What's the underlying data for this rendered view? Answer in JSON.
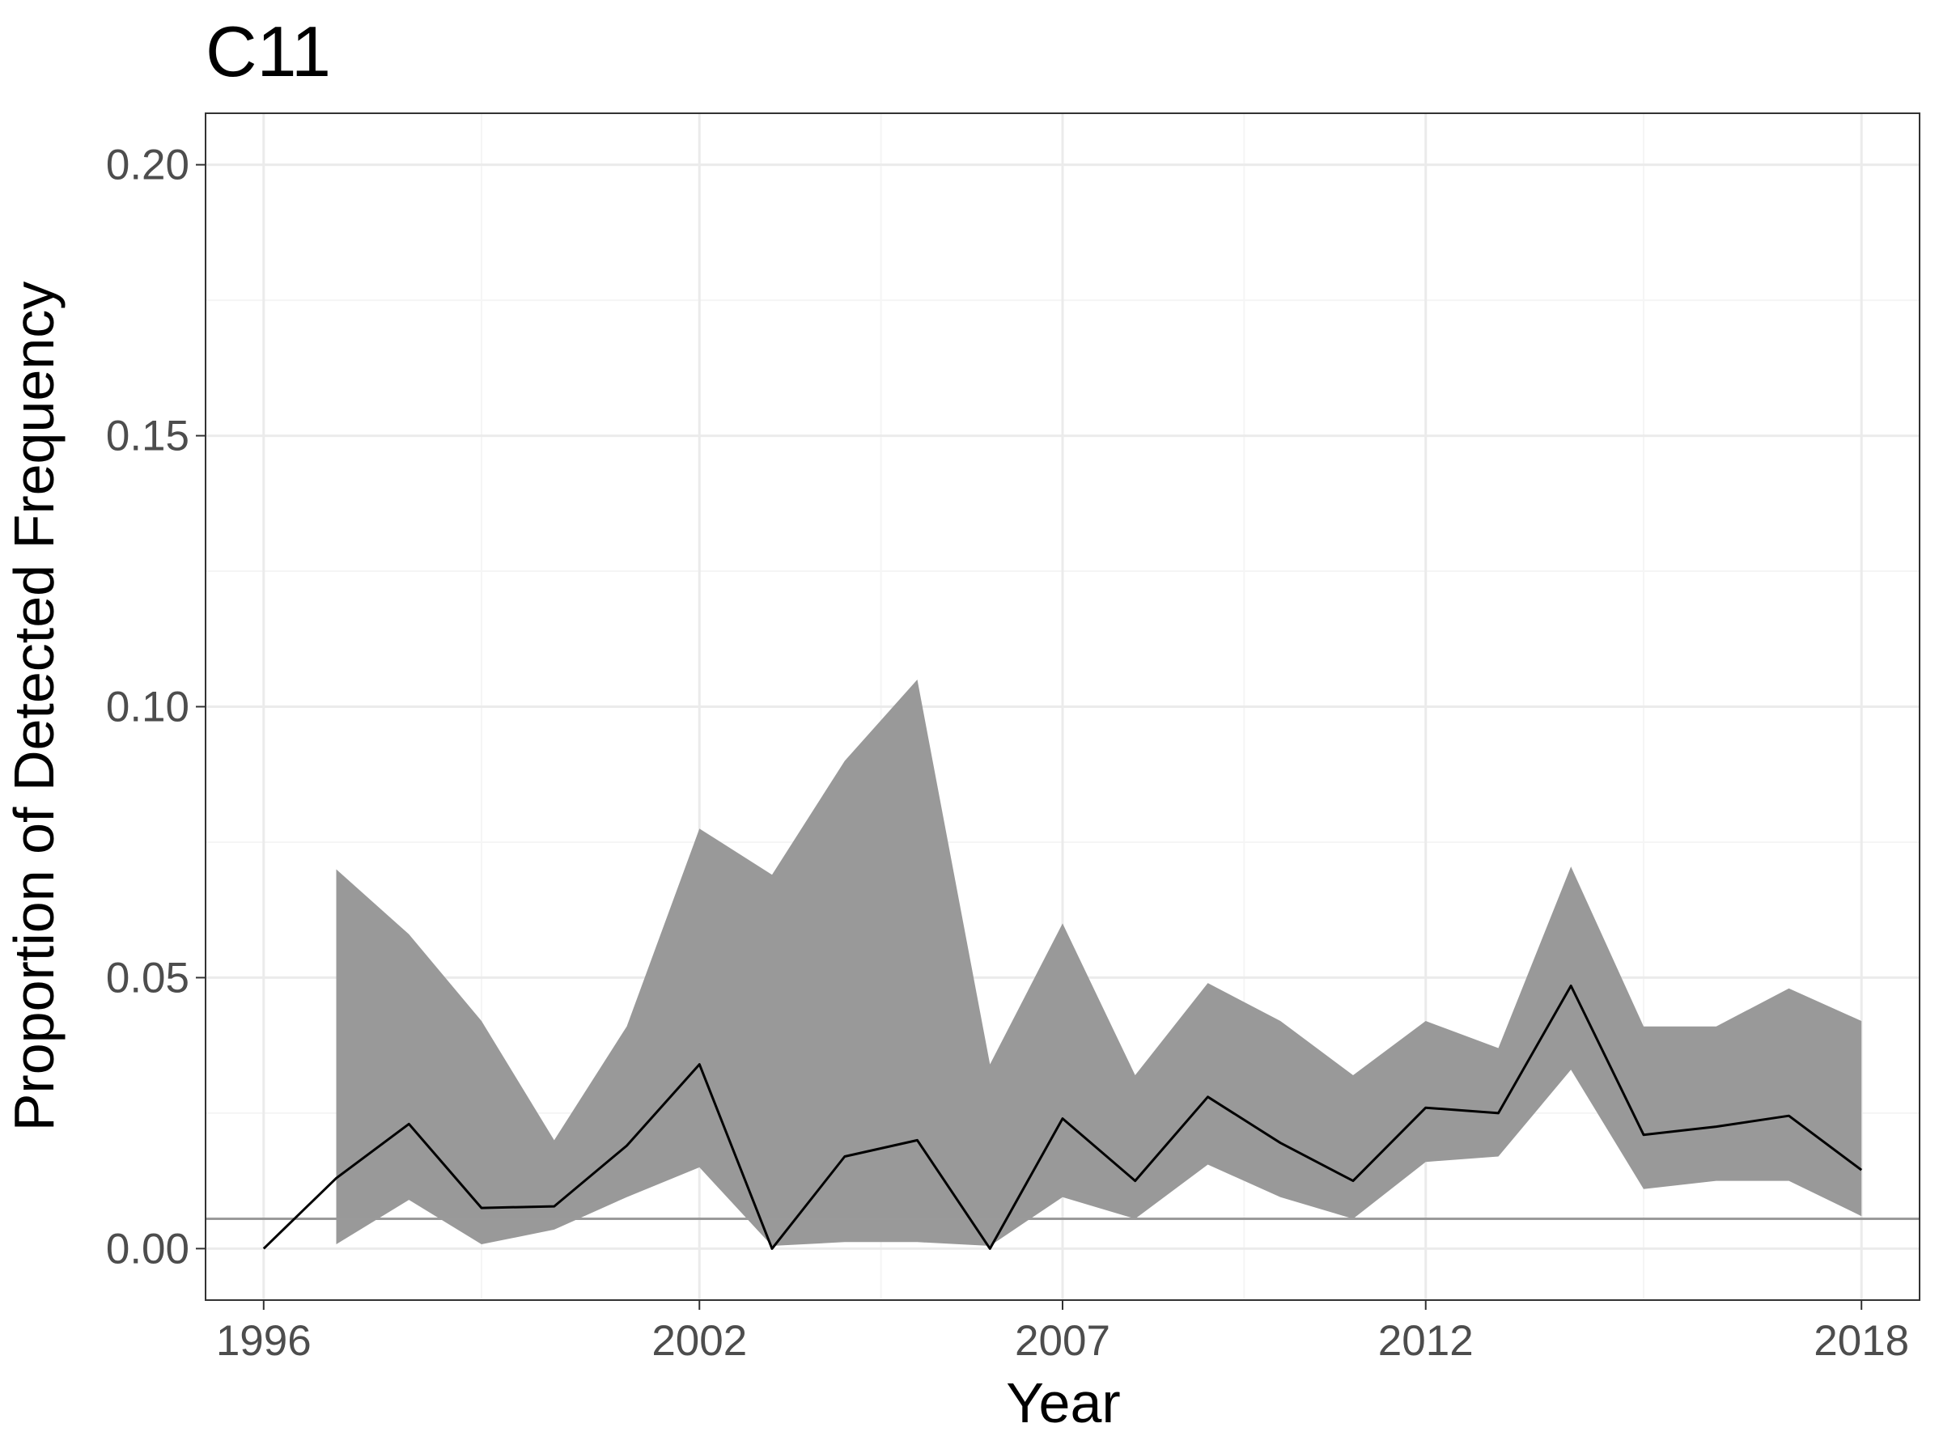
{
  "chart_data": {
    "type": "line",
    "title": "C11",
    "xlabel": "Year",
    "ylabel": "Proportion of Detected Frequency",
    "xlim": [
      1995.2,
      2018.8
    ],
    "ylim": [
      -0.0095,
      0.2095
    ],
    "x_ticks": [
      1996,
      2002,
      2007,
      2012,
      2018
    ],
    "x_tick_labels": [
      "1996",
      "2002",
      "2007",
      "2012",
      "2018"
    ],
    "x_minor_ticks": [
      1999,
      2004.5,
      2009.5,
      2015
    ],
    "y_ticks": [
      0.0,
      0.05,
      0.1,
      0.15,
      0.2
    ],
    "y_tick_labels": [
      "0.00",
      "0.05",
      "0.10",
      "0.15",
      "0.20"
    ],
    "y_minor_ticks": [
      0.025,
      0.075,
      0.125,
      0.175
    ],
    "grid": true,
    "reference_line": {
      "y": 0.0055
    },
    "series": [
      {
        "x": [
          1996,
          1997,
          1998,
          1999,
          2000,
          2001,
          2002,
          2003,
          2004,
          2005,
          2006,
          2007,
          2008,
          2009,
          2010,
          2011,
          2012,
          2013,
          2014,
          2015,
          2016,
          2017,
          2018
        ],
        "values": [
          0.0,
          0.013,
          0.023,
          0.0075,
          0.0078,
          0.019,
          0.034,
          0.0,
          0.017,
          0.02,
          0.0,
          0.024,
          0.0125,
          0.028,
          0.0195,
          0.0125,
          0.026,
          0.025,
          0.0485,
          0.021,
          0.0225,
          0.0245,
          0.0145
        ]
      }
    ],
    "ribbon": {
      "x": [
        1997,
        1998,
        1999,
        2000,
        2001,
        2002,
        2003,
        2004,
        2005,
        2006,
        2007,
        2008,
        2009,
        2010,
        2011,
        2012,
        2013,
        2014,
        2015,
        2016,
        2017,
        2018
      ],
      "upper": [
        0.07,
        0.058,
        0.042,
        0.02,
        0.041,
        0.0775,
        0.069,
        0.09,
        0.105,
        0.034,
        0.06,
        0.032,
        0.049,
        0.042,
        0.032,
        0.042,
        0.037,
        0.0705,
        0.041,
        0.041,
        0.048,
        0.042
      ],
      "lower": [
        0.0008,
        0.009,
        0.0008,
        0.0035,
        0.0095,
        0.015,
        0.0005,
        0.0012,
        0.0012,
        0.0005,
        0.0095,
        0.0055,
        0.0155,
        0.0095,
        0.0055,
        0.016,
        0.017,
        0.033,
        0.011,
        0.0125,
        0.0125,
        0.006
      ]
    },
    "colors": {
      "ribbon": "#999999",
      "line": "#000000",
      "reference_line": "#9a9a9a",
      "grid_major": "#ebebeb",
      "grid_minor": "#f5f5f5",
      "panel_border": "#333333",
      "tick_label": "#4d4d4d"
    }
  }
}
